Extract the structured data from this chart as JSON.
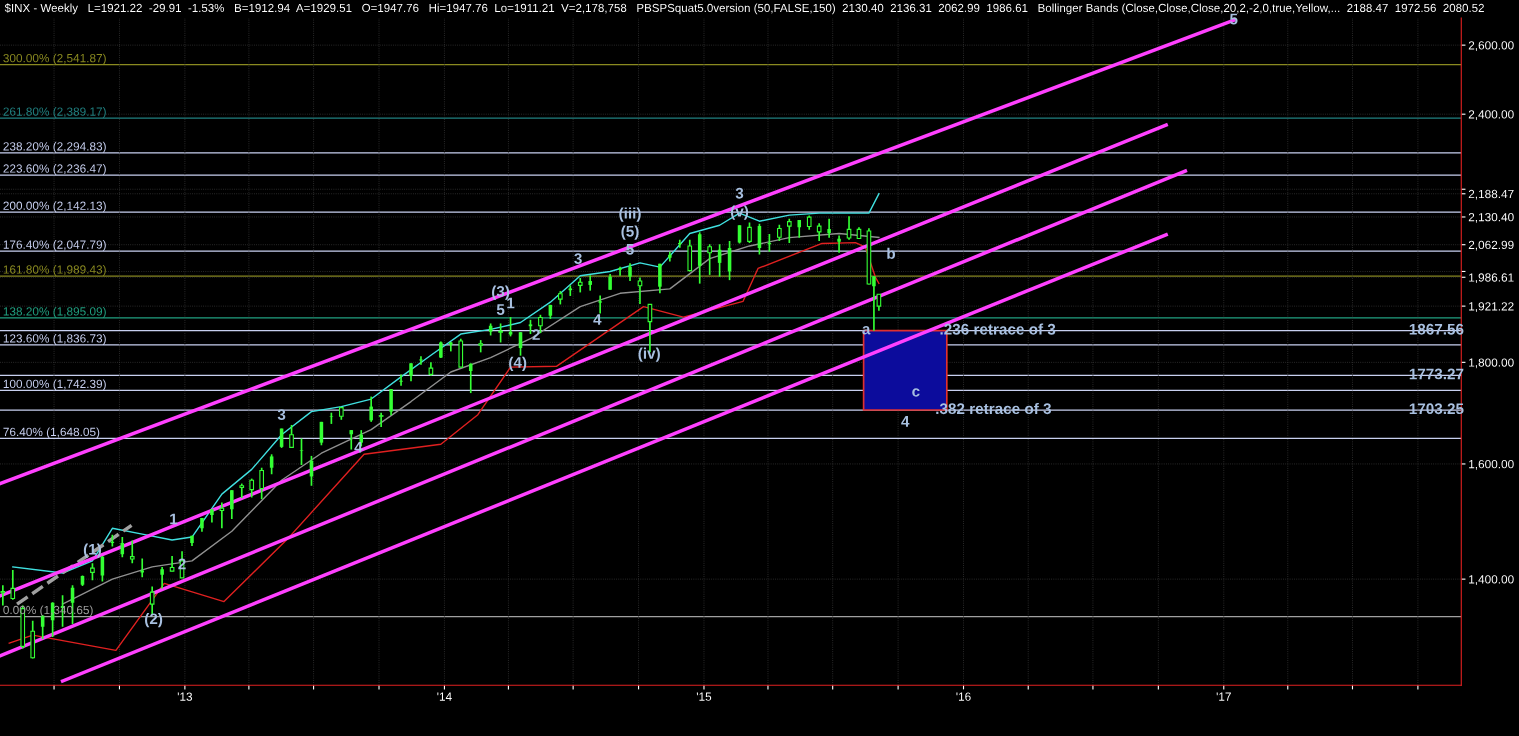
{
  "chart_data": {
    "type": "candlestick",
    "title": "$INX - Weekly   L=1921.22  -29.91  -1.53%   B=1912.94  A=1929.51   O=1947.76   Hi=1947.76  Lo=1911.21  V=2,178,758   PBSPSquat5.0version (50,FALSE,150)  2130.40  2136.31  2062.99  1986.61   Bollinger Bands (Close,Close,Close,20,2,-2,0,true,Yellow,...  2188.47  1972.56  2080.52",
    "xlim": [
      "2012-04-16",
      "2017-12-01"
    ],
    "ylim": [
      1238,
      2683
    ],
    "log": "y",
    "grid": true,
    "xticks": [
      {
        "value": "2012-07-01",
        "label": null
      },
      {
        "value": "2012-10-01",
        "label": null
      },
      {
        "value": "2013-01-01",
        "label": "'13"
      },
      {
        "value": "2013-04-01",
        "label": null
      },
      {
        "value": "2013-07-01",
        "label": null
      },
      {
        "value": "2013-10-01",
        "label": null
      },
      {
        "value": "2014-01-01",
        "label": "'14"
      },
      {
        "value": "2014-04-01",
        "label": null
      },
      {
        "value": "2014-07-01",
        "label": null
      },
      {
        "value": "2014-10-01",
        "label": null
      },
      {
        "value": "2015-01-01",
        "label": "'15"
      },
      {
        "value": "2015-04-01",
        "label": null
      },
      {
        "value": "2015-07-01",
        "label": null
      },
      {
        "value": "2015-10-01",
        "label": null
      },
      {
        "value": "2016-01-01",
        "label": "'16"
      },
      {
        "value": "2016-04-01",
        "label": null
      },
      {
        "value": "2016-07-01",
        "label": null
      },
      {
        "value": "2016-10-01",
        "label": null
      },
      {
        "value": "2017-01-01",
        "label": "'17"
      },
      {
        "value": "2017-04-01",
        "label": null
      },
      {
        "value": "2017-07-01",
        "label": null
      },
      {
        "value": "2017-10-01",
        "label": null
      }
    ],
    "yticks": [
      {
        "value": 1400,
        "label": "1,400.00"
      },
      {
        "value": 1600,
        "label": "1,600.00"
      },
      {
        "value": 1800,
        "label": "1,800.00"
      },
      {
        "value": 1921.22,
        "label": "1,921.22"
      },
      {
        "value": 1986.61,
        "label": "1,986.61"
      },
      {
        "value": 2000,
        "label": null
      },
      {
        "value": 2062.99,
        "label": "2,062.99"
      },
      {
        "value": 2130.4,
        "label": "2,130.40"
      },
      {
        "value": 2188.47,
        "label": "2,188.47"
      },
      {
        "value": 2200,
        "label": null
      },
      {
        "value": 2400,
        "label": "2,400.00"
      },
      {
        "value": 2600,
        "label": "2,600.00"
      }
    ],
    "series": [
      {
        "color": "#33ff33",
        "x": [
          "2012-04-20",
          "2012-05-04",
          "2012-05-18",
          "2012-06-01",
          "2012-06-15",
          "2012-06-29",
          "2012-07-13",
          "2012-07-27",
          "2012-08-10",
          "2012-08-24",
          "2012-09-07",
          "2012-09-21",
          "2012-10-05",
          "2012-10-19",
          "2012-11-02",
          "2012-11-16",
          "2012-11-30",
          "2012-12-14",
          "2012-12-28",
          "2013-01-11",
          "2013-01-25",
          "2013-02-08",
          "2013-02-22",
          "2013-03-08",
          "2013-03-22",
          "2013-04-05",
          "2013-04-19",
          "2013-05-03",
          "2013-05-17",
          "2013-05-31",
          "2013-06-14",
          "2013-06-28",
          "2013-07-12",
          "2013-07-26",
          "2013-08-09",
          "2013-08-23",
          "2013-09-06",
          "2013-09-20",
          "2013-10-04",
          "2013-10-18",
          "2013-11-01",
          "2013-11-15",
          "2013-11-29",
          "2013-12-13",
          "2013-12-27",
          "2014-01-10",
          "2014-01-24",
          "2014-02-07",
          "2014-02-21",
          "2014-03-07",
          "2014-03-21",
          "2014-04-04",
          "2014-04-18",
          "2014-05-02",
          "2014-05-16",
          "2014-05-30",
          "2014-06-13",
          "2014-06-27",
          "2014-07-11",
          "2014-07-25",
          "2014-08-08",
          "2014-08-22",
          "2014-09-05",
          "2014-09-19",
          "2014-10-03",
          "2014-10-17",
          "2014-10-31",
          "2014-11-14",
          "2014-11-28",
          "2014-12-12",
          "2014-12-26",
          "2015-01-09",
          "2015-01-23",
          "2015-02-06",
          "2015-02-20",
          "2015-03-06",
          "2015-03-20",
          "2015-04-03",
          "2015-04-17",
          "2015-05-01",
          "2015-05-15",
          "2015-05-29",
          "2015-06-12",
          "2015-06-26",
          "2015-07-10",
          "2015-07-24",
          "2015-08-07",
          "2015-08-21",
          "2015-08-28",
          "2015-09-04"
        ],
        "ohlc": [
          [
            1380,
            1390,
            1358,
            1378
          ],
          [
            1385,
            1415,
            1367,
            1369
          ],
          [
            1353,
            1358,
            1292,
            1295
          ],
          [
            1318,
            1334,
            1277,
            1278
          ],
          [
            1325,
            1343,
            1306,
            1342
          ],
          [
            1335,
            1363,
            1309,
            1362
          ],
          [
            1354,
            1374,
            1325,
            1357
          ],
          [
            1362,
            1390,
            1329,
            1386
          ],
          [
            1391,
            1406,
            1389,
            1405
          ],
          [
            1418,
            1426,
            1398,
            1411
          ],
          [
            1406,
            1438,
            1396,
            1437
          ],
          [
            1460,
            1474,
            1454,
            1462
          ],
          [
            1441,
            1470,
            1436,
            1460
          ],
          [
            1437,
            1464,
            1426,
            1433
          ],
          [
            1411,
            1434,
            1403,
            1414
          ],
          [
            1379,
            1388,
            1343,
            1360
          ],
          [
            1407,
            1420,
            1385,
            1416
          ],
          [
            1419,
            1438,
            1413,
            1413
          ],
          [
            1430,
            1446,
            1402,
            1402
          ],
          [
            1460,
            1472,
            1455,
            1472
          ],
          [
            1485,
            1503,
            1479,
            1503
          ],
          [
            1508,
            1518,
            1495,
            1518
          ],
          [
            1520,
            1530,
            1485,
            1516
          ],
          [
            1518,
            1552,
            1501,
            1552
          ],
          [
            1560,
            1564,
            1538,
            1557
          ],
          [
            1570,
            1573,
            1539,
            1553
          ],
          [
            1588,
            1593,
            1536,
            1555
          ],
          [
            1593,
            1618,
            1581,
            1614
          ],
          [
            1632,
            1667,
            1630,
            1667
          ],
          [
            1655,
            1674,
            1630,
            1631
          ],
          [
            1625,
            1648,
            1598,
            1626
          ],
          [
            1577,
            1615,
            1560,
            1606
          ],
          [
            1640,
            1680,
            1635,
            1680
          ],
          [
            1690,
            1698,
            1676,
            1691
          ],
          [
            1708,
            1709,
            1684,
            1691
          ],
          [
            1656,
            1664,
            1627,
            1664
          ],
          [
            1640,
            1664,
            1633,
            1655
          ],
          [
            1683,
            1730,
            1680,
            1710
          ],
          [
            1692,
            1698,
            1670,
            1691
          ],
          [
            1700,
            1745,
            1693,
            1745
          ],
          [
            1760,
            1775,
            1752,
            1762
          ],
          [
            1772,
            1798,
            1761,
            1798
          ],
          [
            1804,
            1813,
            1795,
            1806
          ],
          [
            1788,
            1800,
            1772,
            1775
          ],
          [
            1810,
            1844,
            1809,
            1842
          ],
          [
            1837,
            1843,
            1823,
            1842
          ],
          [
            1845,
            1850,
            1790,
            1790
          ],
          [
            1782,
            1798,
            1737,
            1797
          ],
          [
            1839,
            1847,
            1821,
            1836
          ],
          [
            1865,
            1883,
            1857,
            1878
          ],
          [
            1866,
            1883,
            1842,
            1864
          ],
          [
            1859,
            1897,
            1855,
            1865
          ],
          [
            1830,
            1864,
            1814,
            1864
          ],
          [
            1877,
            1891,
            1860,
            1881
          ],
          [
            1896,
            1902,
            1862,
            1878
          ],
          [
            1900,
            1924,
            1893,
            1924
          ],
          [
            1949,
            1955,
            1925,
            1937
          ],
          [
            1957,
            1968,
            1944,
            1961
          ],
          [
            1975,
            1985,
            1952,
            1968
          ],
          [
            1969,
            1991,
            1956,
            1978
          ],
          [
            1929,
            1945,
            1905,
            1932
          ],
          [
            1958,
            1994,
            1958,
            1988
          ],
          [
            2004,
            2011,
            1990,
            2008
          ],
          [
            1988,
            2019,
            1978,
            2011
          ],
          [
            1978,
            1986,
            1926,
            1967
          ],
          [
            1925,
            1925,
            1821,
            1887
          ],
          [
            1965,
            2018,
            1950,
            2018
          ],
          [
            2032,
            2046,
            2023,
            2039
          ],
          [
            2064,
            2075,
            2056,
            2067
          ],
          [
            2060,
            2075,
            2000,
            2002
          ],
          [
            2013,
            2093,
            1972,
            2088
          ],
          [
            2058,
            2064,
            1992,
            2044
          ],
          [
            2020,
            2064,
            1988,
            2051
          ],
          [
            2000,
            2072,
            1980,
            2055
          ],
          [
            2068,
            2110,
            2066,
            2110
          ],
          [
            2105,
            2117,
            2067,
            2071
          ],
          [
            2055,
            2114,
            2040,
            2108
          ],
          [
            2064,
            2089,
            2046,
            2067
          ],
          [
            2102,
            2111,
            2072,
            2081
          ],
          [
            2119,
            2126,
            2067,
            2108
          ],
          [
            2105,
            2123,
            2080,
            2123
          ],
          [
            2130,
            2134,
            2099,
            2107
          ],
          [
            2108,
            2115,
            2072,
            2094
          ],
          [
            2091,
            2126,
            2080,
            2101
          ],
          [
            2070,
            2085,
            2044,
            2077
          ],
          [
            2100,
            2132,
            2075,
            2079
          ],
          [
            2100,
            2105,
            2078,
            2078
          ],
          [
            2096,
            2103,
            1970,
            1971
          ],
          [
            1966,
            1989,
            1867,
            1989
          ],
          [
            1947.76,
            1947.76,
            1911.21,
            1921.22
          ]
        ]
      },
      {
        "type": "line",
        "color": "#40e0e0",
        "x": [
          "2012-05-04",
          "2012-07-13",
          "2012-08-24",
          "2012-09-21",
          "2012-11-02",
          "2012-12-14",
          "2013-01-11",
          "2013-02-22",
          "2013-04-05",
          "2013-05-17",
          "2013-06-28",
          "2013-08-09",
          "2013-09-20",
          "2013-11-01",
          "2013-12-13",
          "2014-01-24",
          "2014-03-07",
          "2014-04-18",
          "2014-05-30",
          "2014-07-11",
          "2014-08-22",
          "2014-10-03",
          "2014-10-31",
          "2014-12-12",
          "2015-01-23",
          "2015-02-20",
          "2015-03-20",
          "2015-05-01",
          "2015-06-12",
          "2015-07-24",
          "2015-08-21",
          "2015-09-04"
        ],
        "values": [
          1420,
          1410,
          1430,
          1485,
          1475,
          1465,
          1470,
          1545,
          1590,
          1655,
          1700,
          1710,
          1725,
          1770,
          1815,
          1860,
          1870,
          1885,
          1930,
          1990,
          2000,
          2020,
          2010,
          2090,
          2110,
          2140,
          2120,
          2135,
          2140,
          2140,
          2140,
          2188.47
        ]
      },
      {
        "type": "line",
        "color": "#909090",
        "x": [
          "2012-07-13",
          "2012-09-21",
          "2012-11-16",
          "2013-01-11",
          "2013-03-08",
          "2013-05-17",
          "2013-07-12",
          "2013-09-20",
          "2013-11-15",
          "2014-01-10",
          "2014-03-07",
          "2014-05-02",
          "2014-07-11",
          "2014-09-05",
          "2014-11-14",
          "2015-01-09",
          "2015-03-06",
          "2015-05-01",
          "2015-07-10",
          "2015-09-04"
        ],
        "values": [
          1360,
          1400,
          1420,
          1430,
          1480,
          1570,
          1620,
          1665,
          1720,
          1780,
          1810,
          1850,
          1920,
          1950,
          1960,
          2030,
          2060,
          2080,
          2090,
          2080.52
        ]
      },
      {
        "type": "line",
        "color": "#e02020",
        "x": [
          "2012-04-29",
          "2012-06-01",
          "2012-09-26",
          "2012-12-03",
          "2013-02-25",
          "2013-05-27",
          "2013-09-10",
          "2013-12-27",
          "2014-02-17",
          "2014-04-04",
          "2014-06-08",
          "2014-10-08",
          "2014-12-03",
          "2015-02-25",
          "2015-03-18",
          "2015-06-16",
          "2015-08-02",
          "2015-08-16",
          "2015-08-30",
          "2015-09-04"
        ],
        "values": [
          1300,
          1312,
          1289,
          1393,
          1364,
          1469,
          1618,
          1637,
          1694,
          1790,
          1792,
          1920,
          1897,
          1932,
          2007,
          2066,
          2068,
          2057,
          1987,
          1972.56
        ]
      },
      {
        "type": "line",
        "color": "#a0a0a0",
        "line_style": "dashed",
        "x": [
          "2012-05-10",
          "2012-10-18"
        ],
        "values": [
          1360,
          1490
        ]
      },
      {
        "type": "line",
        "color": "#ff40ff",
        "x": [
          "2012-04-16",
          "2017-01-15"
        ],
        "values": [
          1564,
          2676
        ]
      },
      {
        "type": "line",
        "color": "#ff40ff",
        "x": [
          "2012-04-16",
          "2016-10-12"
        ],
        "values": [
          1373,
          2370
        ]
      },
      {
        "type": "line",
        "color": "#ff40ff",
        "x": [
          "2012-04-16",
          "2016-11-08"
        ],
        "values": [
          1281,
          2247
        ]
      },
      {
        "type": "line",
        "color": "#ff40ff",
        "x": [
          "2012-07-13",
          "2016-10-12"
        ],
        "values": [
          1244,
          2087
        ]
      },
      {
        "type": "bar",
        "color": "#0c0c9c",
        "x": [
          "2015-10-11"
        ],
        "values": [
          164.31
        ],
        "base": [
          1703.25
        ]
      }
    ],
    "ref_lines": [
      {
        "axis": "y",
        "value": 2541.87,
        "label": "300.00% (2,541.87)",
        "color": "#8a8a20"
      },
      {
        "axis": "y",
        "value": 2389.17,
        "label": "261.80% (2,389.17)",
        "color": "#208080"
      },
      {
        "axis": "y",
        "value": 2294.83,
        "label": "238.20% (2,294.83)",
        "color": "#c8d0f0"
      },
      {
        "axis": "y",
        "value": 2236.47,
        "label": "223.60% (2,236.47)",
        "color": "#c8d0f0"
      },
      {
        "axis": "y",
        "value": 2142.13,
        "label": "200.00% (2,142.13)",
        "color": "#c8d0f0"
      },
      {
        "axis": "y",
        "value": 2047.79,
        "label": "176.40% (2,047.79)",
        "color": "#c8d0f0"
      },
      {
        "axis": "y",
        "value": 1989.43,
        "label": "161.80% (1,989.43)",
        "color": "#8a8a20"
      },
      {
        "axis": "y",
        "value": 1895.09,
        "label": "138.20% (1,895.09)",
        "color": "#20a080"
      },
      {
        "axis": "y",
        "value": 1867.56,
        "color": "#c8d0f0"
      },
      {
        "axis": "y",
        "value": 1836.73,
        "label": "123.60% (1,836.73)",
        "color": "#c8d0f0"
      },
      {
        "axis": "y",
        "value": 1773.27,
        "color": "#c8d0f0"
      },
      {
        "axis": "y",
        "value": 1742.39,
        "label": "100.00% (1,742.39)",
        "color": "#c8d0f0"
      },
      {
        "axis": "y",
        "value": 1703.25,
        "color": "#c8d0f0"
      },
      {
        "axis": "y",
        "value": 1648.05,
        "label": "76.40% (1,648.05)",
        "color": "#c8d0f0"
      },
      {
        "axis": "y",
        "value": 1340.65,
        "label": "0.00% (1,340.65)",
        "color": "#a0a0a0"
      }
    ],
    "annotations": [
      {
        "text": "(1)",
        "x": "2012-08-24",
        "y": 1426
      },
      {
        "text": "1",
        "x": "2012-12-16",
        "y": 1499
      },
      {
        "text": "2",
        "x": "2012-12-28",
        "y": 1402
      },
      {
        "text": "(2)",
        "x": "2012-11-18",
        "y": 1335
      },
      {
        "text": "3",
        "x": "2013-05-17",
        "y": 1667
      },
      {
        "text": "4",
        "x": "2013-09-02",
        "y": 1629
      },
      {
        "text": "5",
        "x": "2014-03-21",
        "y": 1883
      },
      {
        "text": "(3)",
        "x": "2014-03-21",
        "y": 1883
      },
      {
        "text": "1",
        "x": "2014-04-04",
        "y": 1897
      },
      {
        "text": "2",
        "x": "2014-05-10",
        "y": 1856
      },
      {
        "text": "(4)",
        "x": "2014-04-14",
        "y": 1797
      },
      {
        "text": "4",
        "x": "2014-08-04",
        "y": 1889
      },
      {
        "text": "3",
        "x": "2014-07-08",
        "y": 2027
      },
      {
        "text": "5",
        "x": "2014-09-19",
        "y": 2019
      },
      {
        "text": "(5)",
        "x": "2014-09-19",
        "y": 2019
      },
      {
        "text": "(iii)",
        "x": "2014-09-19",
        "y": 2019
      },
      {
        "text": "(iv)",
        "x": "2014-10-16",
        "y": 1816
      },
      {
        "text": "(v)",
        "x": "2015-02-20",
        "y": 2110
      },
      {
        "text": "3",
        "x": "2015-02-20",
        "y": 2110
      },
      {
        "text": "a",
        "x": "2015-08-17",
        "y": 1868
      },
      {
        "text": "b",
        "x": "2015-09-21",
        "y": 2039
      },
      {
        "text": "c",
        "x": "2015-10-26",
        "y": 1738
      },
      {
        "text": "4",
        "x": "2015-10-11",
        "y": 1703.25
      },
      {
        "text": "5",
        "x": "2017-01-15",
        "y": 2676
      },
      {
        "text": ".236 retrace of 3",
        "x": "2016-02-18",
        "y": 1867.56
      },
      {
        "text": ".382 retrace of 3",
        "x": "2016-02-12",
        "y": 1703.25
      },
      {
        "text": "1867.56",
        "x": "2017-10-27",
        "y": 1867.56
      },
      {
        "text": "1773.27",
        "x": "2017-10-27",
        "y": 1773.27
      },
      {
        "text": "1703.25",
        "x": "2017-10-27",
        "y": 1703.25
      }
    ]
  }
}
